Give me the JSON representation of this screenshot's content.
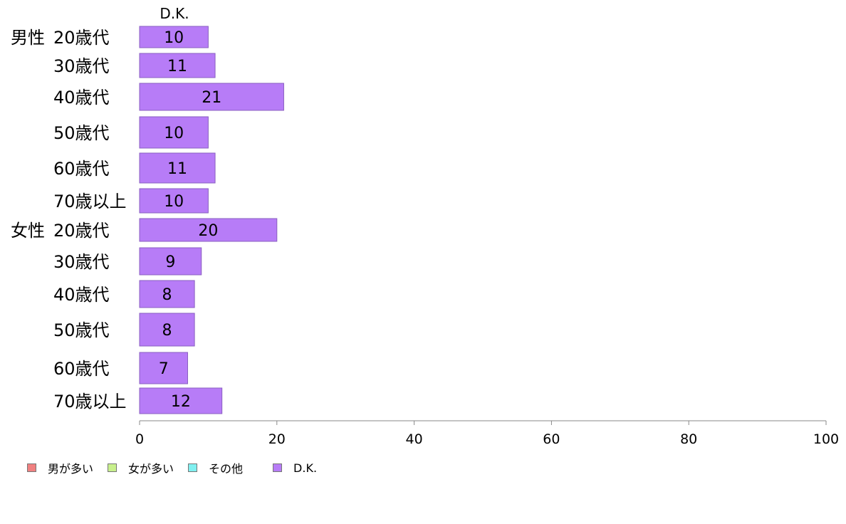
{
  "chart_data": {
    "type": "bar",
    "orientation": "horizontal",
    "stacked": true,
    "column_header": "D.K.",
    "groups": [
      {
        "label": "男性",
        "rows": [
          "20歳代",
          "30歳代",
          "40歳代",
          "50歳代",
          "60歳代",
          "70歳以上"
        ]
      },
      {
        "label": "女性",
        "rows": [
          "20歳代",
          "30歳代",
          "40歳代",
          "50歳代",
          "60歳代",
          "70歳以上"
        ]
      }
    ],
    "categories": [
      "20歳代",
      "30歳代",
      "40歳代",
      "50歳代",
      "60歳代",
      "70歳以上",
      "20歳代",
      "30歳代",
      "40歳代",
      "50歳代",
      "60歳代",
      "70歳以上"
    ],
    "series": [
      {
        "name": "男が多い",
        "color": "#f08080",
        "values": [
          0,
          0,
          0,
          0,
          0,
          0,
          0,
          0,
          0,
          0,
          0,
          0
        ]
      },
      {
        "name": "女が多い",
        "color": "#c8f08c",
        "values": [
          0,
          0,
          0,
          0,
          0,
          0,
          0,
          0,
          0,
          0,
          0,
          0
        ]
      },
      {
        "name": "その他",
        "color": "#80f0f0",
        "values": [
          0,
          0,
          0,
          0,
          0,
          0,
          0,
          0,
          0,
          0,
          0,
          0
        ]
      },
      {
        "name": "D.K.",
        "color": "#b77cf7",
        "values": [
          10,
          11,
          21,
          10,
          11,
          10,
          20,
          9,
          8,
          8,
          7,
          12
        ]
      }
    ],
    "xlim": [
      0,
      100
    ],
    "xticks": [
      "0",
      "20",
      "40",
      "60",
      "80",
      "100"
    ],
    "grid": false,
    "legend_position": "bottom-left"
  }
}
